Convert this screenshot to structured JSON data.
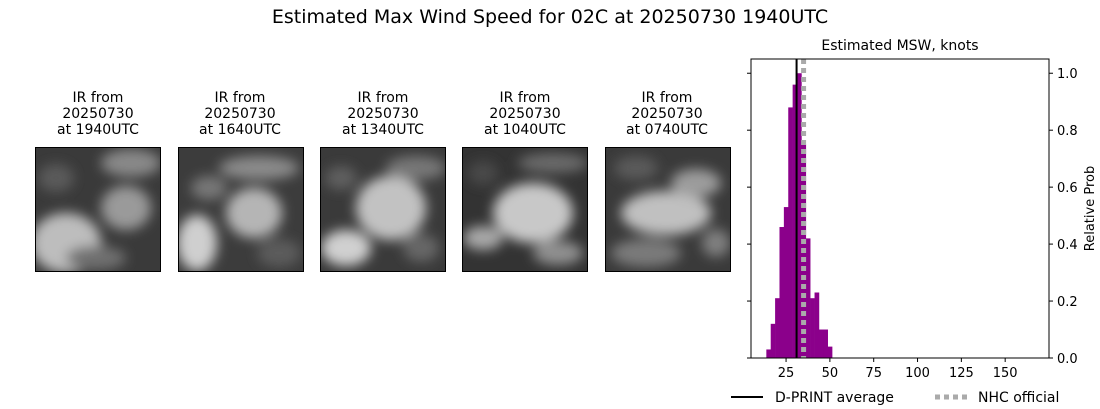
{
  "figure_title": "Estimated Max Wind Speed for 02C at 20250730 1940UTC",
  "ir_panels": [
    {
      "line1": "IR from",
      "line2": "20250730",
      "line3": "at 1940UTC"
    },
    {
      "line1": "IR from",
      "line2": "20250730",
      "line3": "at 1640UTC"
    },
    {
      "line1": "IR from",
      "line2": "20250730",
      "line3": "at 1340UTC"
    },
    {
      "line1": "IR from",
      "line2": "20250730",
      "line3": "at 1040UTC"
    },
    {
      "line1": "IR from",
      "line2": "20250730",
      "line3": "at 0740UTC"
    }
  ],
  "chart_data": {
    "type": "bar",
    "title": "Estimated MSW, knots",
    "xlabel": "",
    "ylabel": "Relative Prob",
    "xlim": [
      5,
      175
    ],
    "ylim": [
      0,
      1.05
    ],
    "xticks": [
      25,
      50,
      75,
      100,
      125,
      150
    ],
    "yticks": [
      0.0,
      0.2,
      0.4,
      0.6,
      0.8,
      1.0
    ],
    "bar_width": 2.5,
    "bar_color": "#8b008b",
    "bars": [
      {
        "x": 15,
        "y": 0.03
      },
      {
        "x": 17.5,
        "y": 0.12
      },
      {
        "x": 20,
        "y": 0.21
      },
      {
        "x": 22.5,
        "y": 0.46
      },
      {
        "x": 25,
        "y": 0.53
      },
      {
        "x": 27.5,
        "y": 0.88
      },
      {
        "x": 30,
        "y": 0.96
      },
      {
        "x": 32.5,
        "y": 1.0
      },
      {
        "x": 35,
        "y": 0.75
      },
      {
        "x": 37.5,
        "y": 0.42
      },
      {
        "x": 40,
        "y": 0.21
      },
      {
        "x": 42.5,
        "y": 0.23
      },
      {
        "x": 45,
        "y": 0.1
      },
      {
        "x": 47.5,
        "y": 0.1
      },
      {
        "x": 50,
        "y": 0.04
      }
    ],
    "lines": [
      {
        "name": "D-PRINT average",
        "x": 31,
        "color": "#000000",
        "style": "solid"
      },
      {
        "name": "NHC official",
        "x": 35,
        "color": "#aaaaaa",
        "style": "dotted"
      }
    ],
    "legend_position": "bottom"
  }
}
